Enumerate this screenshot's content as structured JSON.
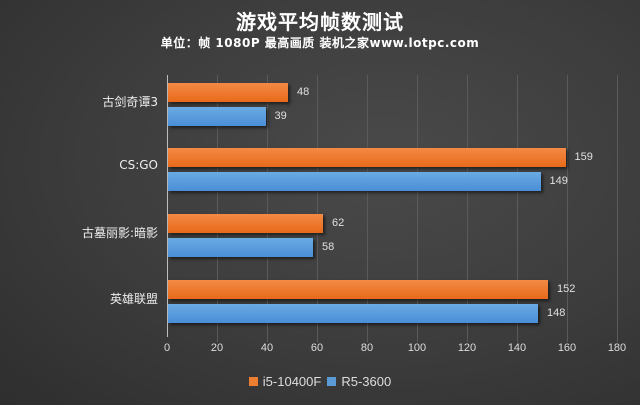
{
  "title": "游戏平均帧数测试",
  "subtitle": "单位：帧   1080P 最高画质 装机之家www.lotpc.com",
  "colors": {
    "i5": "#ed7d31",
    "r5": "#5b9bd5",
    "background": "#3c3c3c"
  },
  "legend": [
    {
      "label": "i5-10400F",
      "color": "#ed7d31"
    },
    {
      "label": "R5-3600",
      "color": "#5b9bd5"
    }
  ],
  "axis": {
    "ticks": [
      "0",
      "20",
      "40",
      "60",
      "80",
      "100",
      "120",
      "140",
      "160",
      "180"
    ]
  },
  "categories": [
    {
      "name": "古剑奇谭3",
      "i5": "48",
      "r5": "39"
    },
    {
      "name": "CS:GO",
      "i5": "159",
      "r5": "149"
    },
    {
      "name": "古墓丽影:暗影",
      "i5": "62",
      "r5": "58"
    },
    {
      "name": "英雄联盟",
      "i5": "152",
      "r5": "148"
    }
  ],
  "chart_data": {
    "type": "bar",
    "orientation": "horizontal",
    "title": "游戏平均帧数测试",
    "subtitle": "单位：帧   1080P 最高画质 装机之家www.lotpc.com",
    "categories": [
      "古剑奇谭3",
      "CS:GO",
      "古墓丽影:暗影",
      "英雄联盟"
    ],
    "series": [
      {
        "name": "i5-10400F",
        "color": "#ed7d31",
        "values": [
          48,
          159,
          62,
          152
        ]
      },
      {
        "name": "R5-3600",
        "color": "#5b9bd5",
        "values": [
          39,
          149,
          58,
          148
        ]
      }
    ],
    "xlabel": "",
    "ylabel": "",
    "xlim": [
      0,
      180
    ],
    "xticks": [
      0,
      20,
      40,
      60,
      80,
      100,
      120,
      140,
      160,
      180
    ],
    "grid": true,
    "legend_position": "bottom",
    "data_labels": true
  }
}
